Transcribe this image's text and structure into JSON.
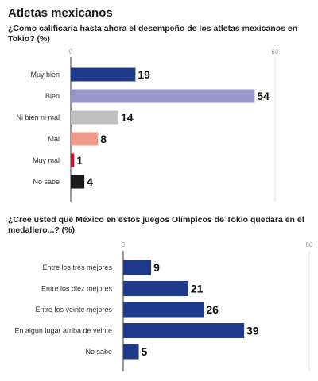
{
  "page": {
    "title": "Atletas mexicanos"
  },
  "chart_data": [
    {
      "type": "bar",
      "orientation": "horizontal",
      "title": "¿Como calificaría hasta ahora el desempeño de los atletas mexicanos en Tokio?  (%)",
      "categories": [
        "Muy bien",
        "Bien",
        "Ni bien ni mal",
        "Mal",
        "Muy mal",
        "No sabe"
      ],
      "values": [
        19,
        54,
        14,
        8,
        1,
        4
      ],
      "colors": [
        "#1f3a8c",
        "#9896c8",
        "#c0c0c0",
        "#ee9a8a",
        "#c8102e",
        "#1a1a1a"
      ],
      "xlim": [
        0,
        60
      ],
      "xticks": [
        0,
        60
      ],
      "grid": true
    },
    {
      "type": "bar",
      "orientation": "horizontal",
      "title": "¿Cree usted que México en estos juegos Olímpicos de Tokio quedará en el medallero...? (%)",
      "categories": [
        "Entre los tres mejores",
        "Entre los diez mejores",
        "Entre los veinte mejores",
        "En algún lugar arriba de veinte",
        "No sabe"
      ],
      "values": [
        9,
        21,
        26,
        39,
        5
      ],
      "colors": [
        "#1f3a8c",
        "#1f3a8c",
        "#1f3a8c",
        "#1f3a8c",
        "#1f3a8c"
      ],
      "xlim": [
        0,
        60
      ],
      "xticks": [
        0,
        60
      ],
      "grid": true
    }
  ]
}
